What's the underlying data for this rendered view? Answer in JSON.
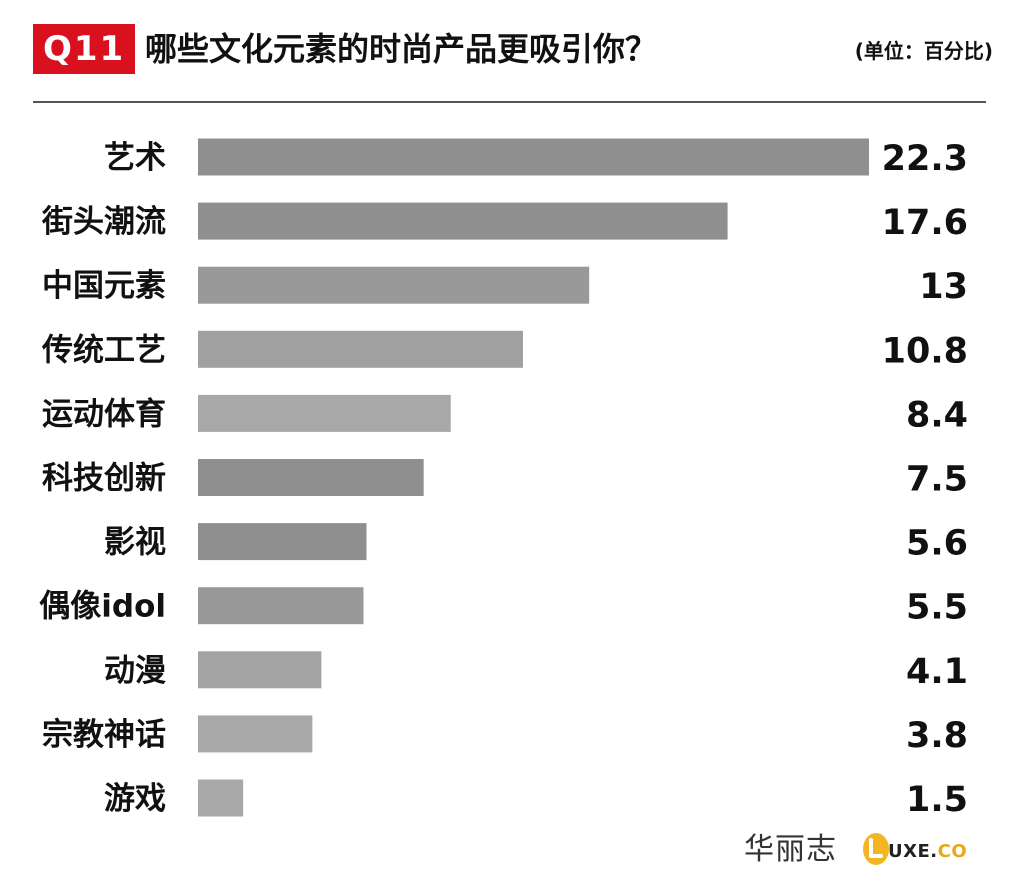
{
  "header": {
    "badge": "Q11",
    "title": "哪些文化元素的时尚产品更吸引你？",
    "unit": "(单位：百分比)"
  },
  "footer": {
    "brand_cn": "华丽志",
    "brand_en": "UXE.",
    "brand_en_suffix": "CO"
  },
  "colors": {
    "accent": "#d9111f",
    "bar_dark": "#8f8f8f",
    "bar_light": "#a8a8a8",
    "logo_yellow": "#f2b623"
  },
  "chart_data": {
    "type": "bar",
    "orientation": "horizontal",
    "categories": [
      "艺术",
      "街头潮流",
      "中国元素",
      "传统工艺",
      "运动体育",
      "科技创新",
      "影视",
      "偶像idol",
      "动漫",
      "宗教神话",
      "游戏"
    ],
    "values": [
      22.3,
      17.6,
      13,
      10.8,
      8.4,
      7.5,
      5.6,
      5.5,
      4.1,
      3.8,
      1.5
    ],
    "value_labels": [
      "22.3",
      "17.6",
      "13",
      "10.8",
      "8.4",
      "7.5",
      "5.6",
      "5.5",
      "4.1",
      "3.8",
      "1.5"
    ],
    "bar_colors": [
      "#8f8f8f",
      "#8f8f8f",
      "#999999",
      "#a0a0a0",
      "#a8a8a8",
      "#8f8f8f",
      "#8f8f8f",
      "#999999",
      "#a3a3a3",
      "#a8a8a8",
      "#a8a8a8"
    ],
    "xlim": [
      0,
      22.3
    ],
    "grid": false,
    "legend": "none"
  }
}
